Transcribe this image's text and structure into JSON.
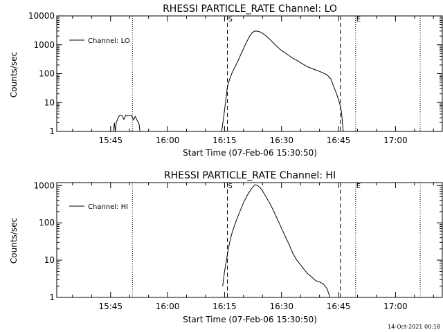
{
  "chart_data": [
    {
      "type": "line",
      "title": "RHESSI PARTICLE_RATE Channel: LO",
      "xlabel": "Start Time (07-Feb-06 15:30:50)",
      "ylabel": "Counts/sec",
      "y_scale": "log",
      "ylim": [
        1,
        10000
      ],
      "xlim": [
        "15:30:50",
        "17:12:30"
      ],
      "x_ticks": [
        "15:45",
        "16:00",
        "16:15",
        "16:30",
        "16:45",
        "17:00"
      ],
      "y_ticks": [
        "1",
        "10",
        "100",
        "1000",
        "10000"
      ],
      "legend": {
        "placement": "top-left",
        "entries": [
          "Channel: LO"
        ]
      },
      "vertical_markers": [
        {
          "time": "15:50:45",
          "style": "dotted"
        },
        {
          "time": "16:15:45",
          "style": "dashed",
          "label": "S"
        },
        {
          "time": "16:45:30",
          "style": "dashed"
        },
        {
          "time": "16:49:30",
          "style": "dotted",
          "label": "E"
        },
        {
          "time": "17:06:30",
          "style": "dotted"
        }
      ],
      "series": [
        {
          "name": "Channel: LO",
          "segments": [
            {
              "x": [
                "15:45:45",
                "15:46:00",
                "15:46:15",
                "15:46:30",
                "15:47:00",
                "15:47:30",
                "15:48:00",
                "15:48:30",
                "15:49:00",
                "15:49:30",
                "15:50:00",
                "15:50:30",
                "15:51:00",
                "15:51:30",
                "15:52:00",
                "15:52:30",
                "15:52:45"
              ],
              "y": [
                1,
                2,
                1,
                2,
                3,
                3.7,
                3.6,
                2.6,
                3.7,
                3.4,
                3.6,
                3.7,
                2.5,
                3.3,
                2.4,
                1.8,
                1
              ]
            },
            {
              "x": [
                "16:14:15",
                "16:14:45",
                "16:15:15",
                "16:15:45",
                "16:16:15",
                "16:17:00",
                "16:17:45",
                "16:18:30",
                "16:19:15",
                "16:20:00",
                "16:20:45",
                "16:21:30",
                "16:22:15",
                "16:23:00",
                "16:24:00",
                "16:25:00",
                "16:26:00",
                "16:27:00",
                "16:28:00",
                "16:29:00",
                "16:30:00",
                "16:31:00",
                "16:32:00",
                "16:33:00",
                "16:34:00",
                "16:35:00",
                "16:36:00",
                "16:37:00",
                "16:38:00",
                "16:39:00",
                "16:40:00",
                "16:41:00",
                "16:42:00",
                "16:43:00",
                "16:43:45",
                "16:44:30",
                "16:45:15",
                "16:45:45",
                "16:46:15"
              ],
              "y": [
                1,
                3,
                10,
                35,
                60,
                110,
                170,
                270,
                450,
                750,
                1200,
                1900,
                2600,
                3000,
                2900,
                2500,
                2000,
                1500,
                1100,
                830,
                630,
                520,
                420,
                340,
                290,
                240,
                200,
                170,
                150,
                135,
                120,
                105,
                90,
                65,
                35,
                20,
                10,
                5,
                1
              ]
            }
          ]
        }
      ]
    },
    {
      "type": "line",
      "title": "RHESSI PARTICLE_RATE Channel: HI",
      "xlabel": "Start Time (07-Feb-06 15:30:50)",
      "ylabel": "Counts/sec",
      "y_scale": "log",
      "ylim": [
        1,
        1200
      ],
      "xlim": [
        "15:30:50",
        "17:12:30"
      ],
      "x_ticks": [
        "15:45",
        "16:00",
        "16:15",
        "16:30",
        "16:45",
        "17:00"
      ],
      "y_ticks": [
        "1",
        "10",
        "100",
        "1000"
      ],
      "legend": {
        "placement": "top-left",
        "entries": [
          "Channel: HI"
        ]
      },
      "vertical_markers": [
        {
          "time": "15:50:45",
          "style": "dotted"
        },
        {
          "time": "16:15:45",
          "style": "dashed",
          "label": "S"
        },
        {
          "time": "16:45:30",
          "style": "dashed"
        },
        {
          "time": "16:49:30",
          "style": "dotted",
          "label": "E"
        },
        {
          "time": "17:06:30",
          "style": "dotted"
        }
      ],
      "series": [
        {
          "name": "Channel: HI",
          "segments": [
            {
              "x": [
                "16:14:30",
                "16:15:00",
                "16:15:30",
                "16:16:00",
                "16:16:30",
                "16:17:00",
                "16:18:00",
                "16:19:00",
                "16:20:00",
                "16:21:00",
                "16:22:00",
                "16:23:00",
                "16:23:45",
                "16:24:30",
                "16:25:15",
                "16:26:00",
                "16:27:00",
                "16:28:00",
                "16:29:00",
                "16:30:00",
                "16:31:00",
                "16:32:00",
                "16:33:00",
                "16:34:00",
                "16:35:00",
                "16:36:00",
                "16:37:00",
                "16:38:00",
                "16:39:00",
                "16:40:00",
                "16:41:00",
                "16:42:00",
                "16:42:45"
              ],
              "y": [
                2,
                5,
                10,
                20,
                35,
                55,
                110,
                200,
                350,
                550,
                800,
                1050,
                1000,
                850,
                650,
                480,
                320,
                200,
                120,
                72,
                43,
                26,
                15,
                10,
                7.5,
                5.5,
                4.2,
                3.5,
                2.8,
                2.6,
                2.3,
                1.7,
                1
              ]
            }
          ]
        }
      ]
    }
  ],
  "footer": {
    "timestamp": "14-Oct-2021 00:18"
  }
}
